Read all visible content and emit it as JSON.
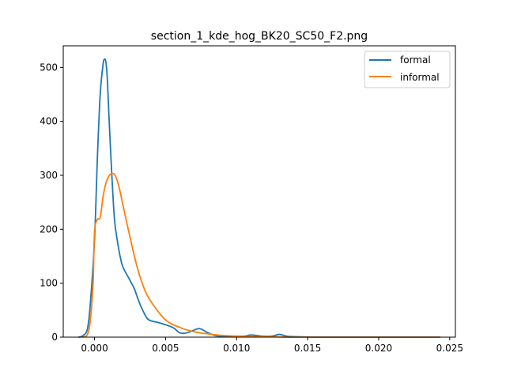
{
  "chart_data": {
    "type": "line",
    "title": "section_1_kde_hog_BK20_SC50_F2.png",
    "xlabel": "",
    "ylabel": "",
    "xlim": [
      -0.0022,
      0.0254
    ],
    "ylim": [
      0,
      540
    ],
    "xticks": [
      0.0,
      0.005,
      0.01,
      0.015,
      0.02,
      0.025
    ],
    "xtick_labels": [
      "0.000",
      "0.005",
      "0.010",
      "0.015",
      "0.020",
      "0.025"
    ],
    "yticks": [
      0,
      100,
      200,
      300,
      400,
      500
    ],
    "ytick_labels": [
      "0",
      "100",
      "200",
      "300",
      "400",
      "500"
    ],
    "grid": false,
    "legend_position": "top-right",
    "series": [
      {
        "name": "formal",
        "color": "#1f77b4",
        "x": [
          -0.0011,
          -0.0008,
          -0.0005,
          -0.0003,
          0.0,
          0.0002,
          0.0004,
          0.0006,
          0.0007,
          0.0008,
          0.0009,
          0.001,
          0.0012,
          0.0014,
          0.0016,
          0.0018,
          0.002,
          0.0024,
          0.0028,
          0.003,
          0.0033,
          0.0037,
          0.004,
          0.0045,
          0.0055,
          0.006,
          0.0065,
          0.0072,
          0.0075,
          0.008,
          0.0085,
          0.009,
          0.0105,
          0.011,
          0.0118,
          0.0125,
          0.013,
          0.0135,
          0.014,
          0.016,
          0.02,
          0.0243
        ],
        "y": [
          0,
          3,
          15,
          60,
          180,
          330,
          450,
          505,
          515,
          510,
          480,
          420,
          310,
          220,
          180,
          150,
          130,
          110,
          90,
          75,
          55,
          35,
          30,
          27,
          18,
          8,
          8,
          15,
          15,
          8,
          3,
          2,
          2,
          4,
          2,
          2,
          5,
          2,
          1,
          0,
          0,
          0
        ]
      },
      {
        "name": "informal",
        "color": "#ff7f0e",
        "x": [
          -0.0008,
          -0.0005,
          -0.0003,
          -0.0001,
          0.0,
          0.0002,
          0.0004,
          0.0006,
          0.0008,
          0.001,
          0.0012,
          0.0014,
          0.0016,
          0.0018,
          0.002,
          0.0025,
          0.003,
          0.0035,
          0.004,
          0.005,
          0.006,
          0.007,
          0.008,
          0.009,
          0.01,
          0.011,
          0.012,
          0.014,
          0.016,
          0.018,
          0.02,
          0.0243
        ],
        "y": [
          0,
          5,
          30,
          100,
          195,
          218,
          222,
          260,
          285,
          298,
          303,
          302,
          290,
          270,
          245,
          185,
          130,
          90,
          65,
          32,
          18,
          10,
          6,
          3,
          2,
          1,
          1,
          0,
          0,
          0,
          0,
          0
        ]
      }
    ]
  }
}
